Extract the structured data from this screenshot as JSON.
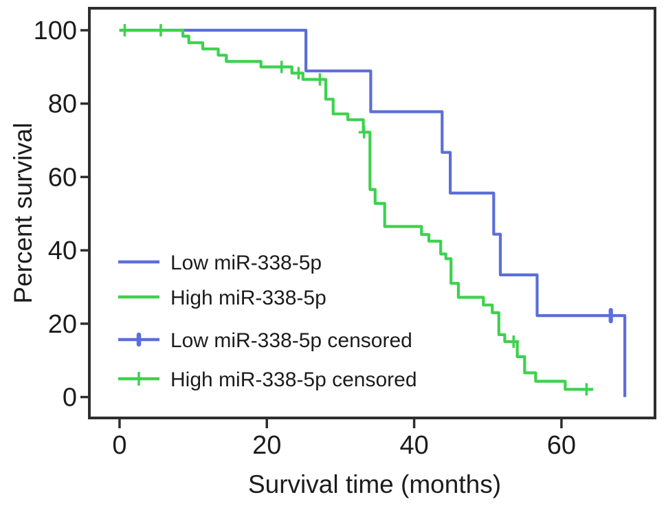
{
  "figure": {
    "type": "kaplan-meier-survival-plot"
  },
  "chart_data": {
    "type": "line",
    "subtype": "kaplan-meier-step",
    "title": "",
    "xlabel": "Survival time (months)",
    "ylabel": "Percent survival",
    "xlim": [
      -4.1,
      72.7
    ],
    "ylim": [
      -5.7,
      106.0
    ],
    "x_ticks": [
      0,
      20,
      40,
      60
    ],
    "y_ticks": [
      0,
      20,
      40,
      60,
      80,
      100
    ],
    "grid": false,
    "legend_position": "inside-middle-left",
    "frame_color": "#2e2e2e",
    "text_color": "#1c1c1c",
    "series": [
      {
        "name": "Low miR-338-5p",
        "color": "#5b6fd8",
        "steps": [
          [
            0,
            100
          ],
          [
            25.3,
            88.9
          ],
          [
            34.1,
            77.8
          ],
          [
            43.8,
            66.7
          ],
          [
            44.9,
            55.6
          ],
          [
            50.8,
            44.4
          ],
          [
            51.7,
            33.3
          ],
          [
            56.7,
            22.2
          ],
          [
            68.6,
            0
          ]
        ],
        "end_month": 68.6,
        "censored": [
          [
            66.7,
            22.2
          ]
        ]
      },
      {
        "name": "High miR-338-5p",
        "color": "#3ed14e",
        "steps": [
          [
            0,
            100
          ],
          [
            8.6,
            98.4
          ],
          [
            9.4,
            96.6
          ],
          [
            11.3,
            94.9
          ],
          [
            13.4,
            93.2
          ],
          [
            14.5,
            91.5
          ],
          [
            19.2,
            90.0
          ],
          [
            23.4,
            88.3
          ],
          [
            24.9,
            86.6
          ],
          [
            28.0,
            81.2
          ],
          [
            29.0,
            77.2
          ],
          [
            31.0,
            75.6
          ],
          [
            33.1,
            72.2
          ],
          [
            34.0,
            56.6
          ],
          [
            34.7,
            52.8
          ],
          [
            36.0,
            46.5
          ],
          [
            41.0,
            44.3
          ],
          [
            42.0,
            42.5
          ],
          [
            43.6,
            39.0
          ],
          [
            44.3,
            37.7
          ],
          [
            45.0,
            31.0
          ],
          [
            46.0,
            27.2
          ],
          [
            49.4,
            25.1
          ],
          [
            50.6,
            23.0
          ],
          [
            51.5,
            17.0
          ],
          [
            52.3,
            15.1
          ],
          [
            54.0,
            11.0
          ],
          [
            55.0,
            6.6
          ],
          [
            56.5,
            4.3
          ],
          [
            60.5,
            2.1
          ]
        ],
        "end_month": 64.3,
        "censored": [
          [
            0.7,
            100
          ],
          [
            5.6,
            100
          ],
          [
            22.0,
            90.0
          ],
          [
            24.3,
            88.3
          ],
          [
            27.2,
            86.6
          ],
          [
            33.2,
            72.2
          ],
          [
            53.5,
            15.1
          ],
          [
            63.4,
            2.1
          ]
        ]
      }
    ],
    "legend": [
      {
        "label": "Low miR-338-5p",
        "series": 0,
        "marker": "line"
      },
      {
        "label": "High miR-338-5p",
        "series": 1,
        "marker": "line"
      },
      {
        "label": "Low miR-338-5p censored",
        "series": 0,
        "marker": "line-thick-dash"
      },
      {
        "label": "High miR-338-5p censored",
        "series": 1,
        "marker": "line-plus"
      }
    ]
  }
}
